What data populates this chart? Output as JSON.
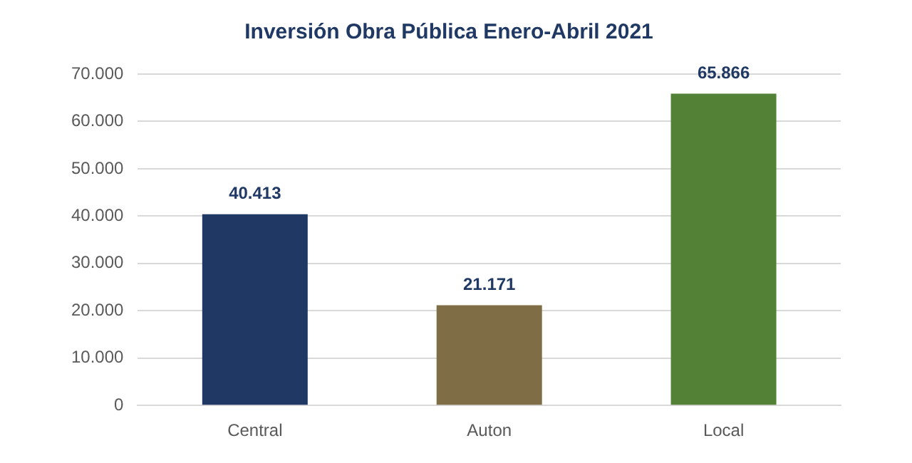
{
  "chart_data": {
    "type": "bar",
    "title": "Inversión Obra Pública Enero-Abril 2021",
    "categories": [
      "Central",
      "Auton",
      "Local"
    ],
    "values": [
      40413,
      21171,
      65866
    ],
    "colors": [
      "#1f3864",
      "#7f6e45",
      "#538135"
    ],
    "value_labels": [
      "40.413",
      "21.171",
      "65.866"
    ],
    "ylim": [
      0,
      70000
    ],
    "yticks": [
      {
        "value": 0,
        "label": "0"
      },
      {
        "value": 10000,
        "label": "10.000"
      },
      {
        "value": 20000,
        "label": "20.000"
      },
      {
        "value": 30000,
        "label": "30.000"
      },
      {
        "value": 40000,
        "label": "40.000"
      },
      {
        "value": 50000,
        "label": "50.000"
      },
      {
        "value": 60000,
        "label": "60.000"
      },
      {
        "value": 70000,
        "label": "70.000"
      }
    ],
    "grid": "y"
  }
}
